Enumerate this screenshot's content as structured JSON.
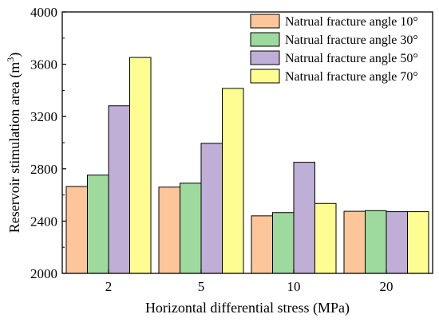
{
  "chart_data": {
    "type": "bar",
    "xlabel": "Horizontal differential stress (MPa)",
    "ylabel": "Reservoir stimulation area (m",
    "ylabel_sup": "3",
    "ylabel_close": ")",
    "categories": [
      "2",
      "5",
      "10",
      "20"
    ],
    "ylim": [
      2000,
      4000
    ],
    "yticks": [
      2000,
      2400,
      2800,
      3200,
      3600,
      4000
    ],
    "legend_position": "top-right",
    "series": [
      {
        "name": "Natrual fracture angle 10°",
        "color": "#fcc69a",
        "values": [
          2665,
          2660,
          2440,
          2475
        ]
      },
      {
        "name": "Natrual fracture angle 30°",
        "color": "#9ed99d",
        "values": [
          2752,
          2690,
          2465,
          2480
        ]
      },
      {
        "name": "Natrual fracture angle 50°",
        "color": "#bfaed6",
        "values": [
          3282,
          2995,
          2850,
          2472
        ]
      },
      {
        "name": "Natrual fracture angle 70°",
        "color": "#fdfd91",
        "values": [
          3652,
          3415,
          2535,
          2472
        ]
      }
    ]
  }
}
